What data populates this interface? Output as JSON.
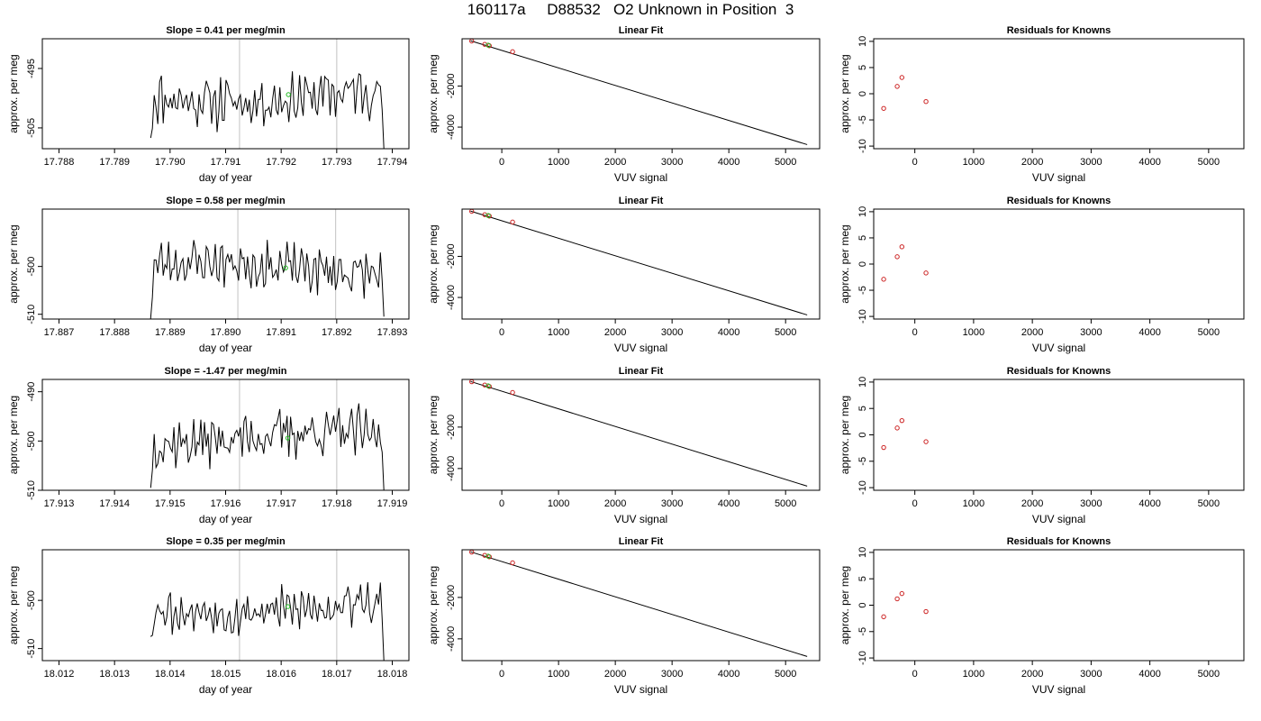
{
  "page_title": "160117a     D88532   O2 Unknown in Position  3",
  "chart_data": [
    {
      "type": "line",
      "title": "Slope =  0.41  per meg/min",
      "xlabel": "day of year",
      "ylabel": "approx. per meg",
      "xlim": [
        17.7877,
        17.7943
      ],
      "ylim": [
        -508.5,
        -490.0
      ],
      "xticks": [
        "17.788",
        "17.789",
        "17.790",
        "17.791",
        "17.792",
        "17.793",
        "17.794"
      ],
      "yticks": [
        "-505",
        "-495"
      ],
      "vlines": [
        17.79125,
        17.793
      ],
      "trace": {
        "x_start": 17.78965,
        "x_end": 17.79385,
        "y_start": -506.7,
        "y_end": -508.5,
        "center": -499.5,
        "amplitude": 3.1,
        "seed": 11
      },
      "highlight_point": {
        "x": 17.79213,
        "y": -499.4
      },
      "grid": false
    },
    {
      "type": "scatter",
      "title": "Linear Fit",
      "xlabel": "VUV signal",
      "ylabel": "approx. per meg",
      "xlim": [
        -700,
        5600
      ],
      "ylim": [
        -5050,
        300
      ],
      "xticks": [
        "0",
        "1000",
        "2000",
        "3000",
        "4000",
        "5000"
      ],
      "yticks": [
        "-2000",
        "-4000"
      ],
      "knowns": [
        {
          "x": -530,
          "y": 190
        },
        {
          "x": -300,
          "y": 30
        },
        {
          "x": -220,
          "y": -40
        },
        {
          "x": 190,
          "y": -330
        }
      ],
      "unknown": {
        "x": -240,
        "y": -10
      },
      "fit_line": {
        "x0": -550,
        "y0": 200,
        "x1": 5380,
        "y1": -4850
      },
      "grid": false
    },
    {
      "type": "scatter",
      "title": "Residuals for Knowns",
      "xlabel": "VUV signal",
      "ylabel": "approx. per meg",
      "xlim": [
        -700,
        5600
      ],
      "ylim": [
        -10.5,
        10.5
      ],
      "xticks": [
        "0",
        "1000",
        "2000",
        "3000",
        "4000",
        "5000"
      ],
      "yticks": [
        "10",
        "5",
        "0",
        "-5",
        "-10"
      ],
      "points": [
        {
          "x": -530,
          "y": -2.8
        },
        {
          "x": -300,
          "y": 1.4
        },
        {
          "x": -220,
          "y": 3.1
        },
        {
          "x": 190,
          "y": -1.5
        }
      ],
      "grid": false
    },
    {
      "type": "line",
      "title": "Slope =  0.58  per meg/min",
      "xlabel": "day of year",
      "ylabel": "approx. per meg",
      "xlim": [
        17.8867,
        17.8933
      ],
      "ylim": [
        -511.0,
        -488.0
      ],
      "xticks": [
        "17.887",
        "17.888",
        "17.889",
        "17.890",
        "17.891",
        "17.892",
        "17.893"
      ],
      "yticks": [
        "-510",
        "-500"
      ],
      "vlines": [
        17.89022,
        17.89198
      ],
      "trace": {
        "x_start": 17.88865,
        "x_end": 17.89285,
        "y_start": -511.0,
        "y_end": -510.5,
        "center": -500.3,
        "amplitude": 3.4,
        "seed": 23
      },
      "highlight_point": {
        "x": 17.89108,
        "y": -500.3
      },
      "grid": false
    },
    {
      "type": "scatter",
      "title": "Linear Fit",
      "xlabel": "VUV signal",
      "ylabel": "approx. per meg",
      "xlim": [
        -700,
        5600
      ],
      "ylim": [
        -5050,
        300
      ],
      "xticks": [
        "0",
        "1000",
        "2000",
        "3000",
        "4000",
        "5000"
      ],
      "yticks": [
        "-2000",
        "-4000"
      ],
      "knowns": [
        {
          "x": -530,
          "y": 190
        },
        {
          "x": -300,
          "y": 30
        },
        {
          "x": -220,
          "y": -40
        },
        {
          "x": 190,
          "y": -330
        }
      ],
      "unknown": {
        "x": -240,
        "y": -10
      },
      "fit_line": {
        "x0": -550,
        "y0": 200,
        "x1": 5380,
        "y1": -4850
      },
      "grid": false
    },
    {
      "type": "scatter",
      "title": "Residuals for Knowns",
      "xlabel": "VUV signal",
      "ylabel": "approx. per meg",
      "xlim": [
        -700,
        5600
      ],
      "ylim": [
        -10.5,
        10.5
      ],
      "xticks": [
        "0",
        "1000",
        "2000",
        "3000",
        "4000",
        "5000"
      ],
      "yticks": [
        "10",
        "5",
        "0",
        "-5",
        "-10"
      ],
      "points": [
        {
          "x": -530,
          "y": -2.9
        },
        {
          "x": -300,
          "y": 1.4
        },
        {
          "x": -220,
          "y": 3.3
        },
        {
          "x": 190,
          "y": -1.7
        }
      ],
      "grid": false
    },
    {
      "type": "line",
      "title": "Slope =  -1.47  per meg/min",
      "xlabel": "day of year",
      "ylabel": "approx. per meg",
      "xlim": [
        17.9127,
        17.9193
      ],
      "ylim": [
        -510.0,
        -487.5
      ],
      "xticks": [
        "17.913",
        "17.914",
        "17.915",
        "17.916",
        "17.917",
        "17.918",
        "17.919"
      ],
      "yticks": [
        "-510",
        "-500",
        "-490"
      ],
      "vlines": [
        17.91625,
        17.918
      ],
      "trace": {
        "x_start": 17.91465,
        "x_end": 17.91885,
        "y_start": -509.5,
        "y_end": -510.0,
        "center": -499.4,
        "amplitude": 3.6,
        "seed": 37
      },
      "highlight_point": {
        "x": 17.91712,
        "y": -499.4
      },
      "grid": false
    },
    {
      "type": "scatter",
      "title": "Linear Fit",
      "xlabel": "VUV signal",
      "ylabel": "approx. per meg",
      "xlim": [
        -700,
        5600
      ],
      "ylim": [
        -5050,
        300
      ],
      "xticks": [
        "0",
        "1000",
        "2000",
        "3000",
        "4000",
        "5000"
      ],
      "yticks": [
        "-2000",
        "-4000"
      ],
      "knowns": [
        {
          "x": -530,
          "y": 190
        },
        {
          "x": -300,
          "y": 30
        },
        {
          "x": -220,
          "y": -40
        },
        {
          "x": 190,
          "y": -330
        }
      ],
      "unknown": {
        "x": -240,
        "y": -10
      },
      "fit_line": {
        "x0": -550,
        "y0": 200,
        "x1": 5380,
        "y1": -4850
      },
      "grid": false
    },
    {
      "type": "scatter",
      "title": "Residuals for Knowns",
      "xlabel": "VUV signal",
      "ylabel": "approx. per meg",
      "xlim": [
        -700,
        5600
      ],
      "ylim": [
        -10.5,
        10.5
      ],
      "xticks": [
        "0",
        "1000",
        "2000",
        "3000",
        "4000",
        "5000"
      ],
      "yticks": [
        "10",
        "5",
        "0",
        "-5",
        "-10"
      ],
      "points": [
        {
          "x": -530,
          "y": -2.4
        },
        {
          "x": -300,
          "y": 1.3
        },
        {
          "x": -220,
          "y": 2.7
        },
        {
          "x": 190,
          "y": -1.3
        }
      ],
      "grid": false
    },
    {
      "type": "line",
      "title": "Slope =  0.35  per meg/min",
      "xlabel": "day of year",
      "ylabel": "approx. per meg",
      "xlim": [
        18.0117,
        18.0183
      ],
      "ylim": [
        -512.5,
        -489.5
      ],
      "xticks": [
        "18.012",
        "18.013",
        "18.014",
        "18.015",
        "18.016",
        "18.017",
        "18.018"
      ],
      "yticks": [
        "-510",
        "-500"
      ],
      "vlines": [
        18.01525,
        18.017
      ],
      "trace": {
        "x_start": 18.01365,
        "x_end": 18.01785,
        "y_start": -507.5,
        "y_end": -512.5,
        "center": -501.3,
        "amplitude": 3.3,
        "seed": 53
      },
      "highlight_point": {
        "x": 18.01612,
        "y": -501.3
      },
      "grid": false
    },
    {
      "type": "scatter",
      "title": "Linear Fit",
      "xlabel": "VUV signal",
      "ylabel": "approx. per meg",
      "xlim": [
        -700,
        5600
      ],
      "ylim": [
        -5050,
        300
      ],
      "xticks": [
        "0",
        "1000",
        "2000",
        "3000",
        "4000",
        "5000"
      ],
      "yticks": [
        "-2000",
        "-4000"
      ],
      "knowns": [
        {
          "x": -530,
          "y": 190
        },
        {
          "x": -300,
          "y": 30
        },
        {
          "x": -220,
          "y": -40
        },
        {
          "x": 190,
          "y": -330
        }
      ],
      "unknown": {
        "x": -240,
        "y": -10
      },
      "fit_line": {
        "x0": -550,
        "y0": 200,
        "x1": 5380,
        "y1": -4850
      },
      "grid": false
    },
    {
      "type": "scatter",
      "title": "Residuals for Knowns",
      "xlabel": "VUV signal",
      "ylabel": "approx. per meg",
      "xlim": [
        -700,
        5600
      ],
      "ylim": [
        -10.5,
        10.5
      ],
      "xticks": [
        "0",
        "1000",
        "2000",
        "3000",
        "4000",
        "5000"
      ],
      "yticks": [
        "10",
        "5",
        "0",
        "-5",
        "-10"
      ],
      "points": [
        {
          "x": -530,
          "y": -2.2
        },
        {
          "x": -300,
          "y": 1.2
        },
        {
          "x": -220,
          "y": 2.2
        },
        {
          "x": 190,
          "y": -1.2
        }
      ],
      "grid": false
    }
  ],
  "colors": {
    "trace": "#000000",
    "fit_line": "#000000",
    "known_points": "#cc2222",
    "unknown_points": "#22bb22",
    "vlines": "#cccccc",
    "axes": "#000000"
  }
}
